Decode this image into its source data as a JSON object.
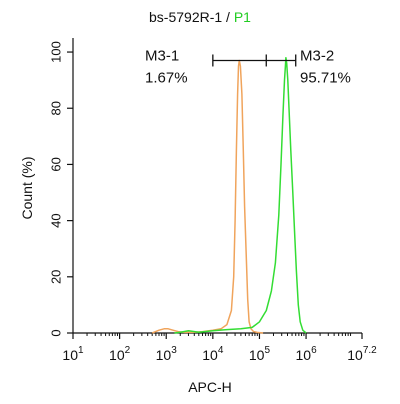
{
  "chart_data": {
    "type": "line",
    "title_main": "bs-5792R-1 / ",
    "title_gate": "P1",
    "xlabel": "APC-H",
    "ylabel": "Count  (%)",
    "x_scale": "log",
    "xlim": [
      10,
      15848932
    ],
    "ylim": [
      0,
      105
    ],
    "x_ticks": [
      {
        "base": "10",
        "exp": "1"
      },
      {
        "base": "10",
        "exp": "2"
      },
      {
        "base": "10",
        "exp": "3"
      },
      {
        "base": "10",
        "exp": "4"
      },
      {
        "base": "10",
        "exp": "5"
      },
      {
        "base": "10",
        "exp": "6"
      },
      {
        "base": "10",
        "exp": "7.2"
      }
    ],
    "y_ticks": [
      "0",
      "20",
      "40",
      "60",
      "80",
      "100"
    ],
    "y_tick_values": [
      0,
      20,
      40,
      60,
      80,
      100
    ],
    "colors": {
      "control": "#f0a45c",
      "sample": "#33dd33",
      "gate_title": "#22cc22",
      "axis": "#111111"
    },
    "markers": [
      {
        "label": "M3-1",
        "value": "1.67%",
        "range": [
          10000,
          140000
        ]
      },
      {
        "label": "M3-2",
        "value": "95.71%",
        "range": [
          140000,
          600000
        ]
      }
    ],
    "marker_y": 97,
    "series": [
      {
        "key": "control",
        "points": [
          [
            500,
            0
          ],
          [
            700,
            1.0
          ],
          [
            900,
            1.5
          ],
          [
            1100,
            1.5
          ],
          [
            1400,
            1.0
          ],
          [
            1800,
            0.5
          ],
          [
            2500,
            0.2
          ],
          [
            4000,
            0.3
          ],
          [
            6000,
            0.5
          ],
          [
            10000,
            1.0
          ],
          [
            15000,
            1.5
          ],
          [
            20000,
            3
          ],
          [
            25000,
            8
          ],
          [
            28000,
            20
          ],
          [
            30000,
            40
          ],
          [
            32000,
            65
          ],
          [
            34000,
            85
          ],
          [
            35500,
            95
          ],
          [
            37000,
            97
          ],
          [
            39000,
            95
          ],
          [
            42000,
            85
          ],
          [
            45000,
            65
          ],
          [
            48000,
            45
          ],
          [
            52000,
            28
          ],
          [
            56000,
            12
          ],
          [
            60000,
            4
          ],
          [
            66000,
            1.5
          ],
          [
            75000,
            0.5
          ],
          [
            90000,
            0.2
          ],
          [
            120000,
            0
          ]
        ]
      },
      {
        "key": "sample",
        "points": [
          [
            1500,
            0
          ],
          [
            2000,
            0.3
          ],
          [
            3000,
            0.8
          ],
          [
            5000,
            0.3
          ],
          [
            10000,
            0.8
          ],
          [
            20000,
            1.2
          ],
          [
            40000,
            1.5
          ],
          [
            70000,
            2
          ],
          [
            100000,
            4
          ],
          [
            140000,
            8
          ],
          [
            180000,
            15
          ],
          [
            220000,
            25
          ],
          [
            260000,
            42
          ],
          [
            290000,
            60
          ],
          [
            320000,
            78
          ],
          [
            345000,
            90
          ],
          [
            360000,
            95
          ],
          [
            370000,
            98
          ],
          [
            385000,
            96
          ],
          [
            405000,
            90
          ],
          [
            430000,
            80
          ],
          [
            470000,
            65
          ],
          [
            520000,
            50
          ],
          [
            570000,
            35
          ],
          [
            620000,
            22
          ],
          [
            680000,
            10
          ],
          [
            750000,
            4
          ],
          [
            850000,
            1
          ],
          [
            1000000,
            0
          ]
        ]
      }
    ]
  }
}
